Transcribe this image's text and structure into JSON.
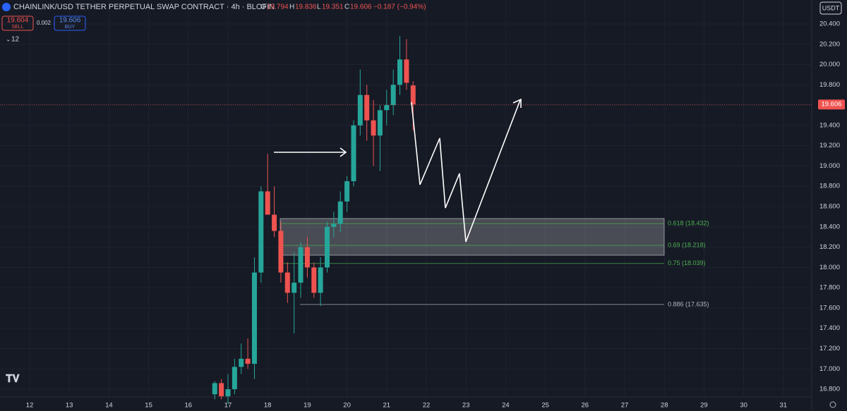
{
  "chart_data": {
    "type": "candlestick",
    "title": "CHAINLINK/USD TETHER PERPETUAL SWAP CONTRACT · 4h · BLOFIN",
    "ohlc_header": {
      "o_label": "O",
      "o": 19.794,
      "h_label": "H",
      "h": 19.836,
      "l_label": "L",
      "l": 19.351,
      "c_label": "C",
      "c": 19.606,
      "change": "−0.187 (−0.94%)"
    },
    "sell": {
      "price": 19.604,
      "label": "SELL"
    },
    "spread": 0.002,
    "buy": {
      "price": 19.606,
      "label": "BUY"
    },
    "indicator_count": "12",
    "currency": "USDT",
    "up_color": "#26a69a",
    "down_color": "#ef5350",
    "x": [
      16.667,
      16.833,
      17.0,
      17.167,
      17.333,
      17.5,
      17.667,
      17.833,
      18.0,
      18.167,
      18.333,
      18.5,
      18.667,
      18.833,
      19.0,
      19.167,
      19.333,
      19.5,
      19.667,
      19.833,
      20.0,
      20.167,
      20.333,
      20.5,
      20.667,
      20.833,
      21.0,
      21.167,
      21.333,
      21.5,
      21.667
    ],
    "open": [
      16.75,
      16.86,
      16.73,
      16.8,
      17.02,
      17.1,
      17.05,
      17.95,
      18.75,
      18.52,
      18.36,
      17.95,
      17.75,
      17.85,
      18.2,
      18.0,
      17.75,
      18.0,
      18.4,
      18.43,
      18.65,
      18.85,
      19.4,
      19.7,
      19.45,
      19.3,
      19.55,
      19.6,
      19.8,
      20.05,
      19.794
    ],
    "high": [
      16.88,
      16.9,
      16.95,
      17.1,
      17.25,
      17.3,
      18.1,
      18.8,
      19.12,
      18.8,
      18.45,
      18.05,
      18.15,
      18.25,
      18.3,
      18.05,
      18.1,
      18.45,
      18.55,
      18.75,
      18.9,
      19.45,
      19.95,
      19.8,
      19.65,
      19.6,
      19.75,
      19.95,
      20.28,
      20.25,
      19.836
    ],
    "low": [
      16.7,
      16.7,
      16.65,
      16.75,
      16.95,
      17.0,
      16.9,
      17.85,
      18.55,
      18.3,
      17.85,
      17.65,
      17.35,
      17.7,
      17.9,
      17.7,
      17.62,
      17.95,
      18.3,
      18.35,
      18.55,
      18.8,
      19.3,
      19.25,
      19.0,
      18.95,
      19.4,
      19.5,
      19.7,
      19.75,
      19.351
    ],
    "close": [
      16.86,
      16.73,
      16.8,
      17.02,
      17.1,
      17.05,
      17.95,
      18.75,
      18.52,
      18.36,
      17.95,
      17.75,
      17.85,
      18.2,
      18.0,
      17.75,
      18.0,
      18.4,
      18.43,
      18.65,
      18.85,
      19.4,
      19.7,
      19.45,
      19.3,
      19.55,
      19.6,
      19.8,
      20.05,
      19.82,
      19.606
    ],
    "last_price": 19.606,
    "xlim": [
      11.253,
      31.715
    ],
    "ylim": [
      16.724,
      20.636
    ],
    "xticks": [
      12,
      13,
      14,
      15,
      16,
      17,
      18,
      19,
      20,
      21,
      22,
      23,
      24,
      25,
      26,
      27,
      28,
      29,
      30,
      31
    ],
    "yticks": [
      {
        "value": 16.8,
        "label": "16.800"
      },
      {
        "value": 17.0,
        "label": "17.000"
      },
      {
        "value": 17.2,
        "label": "17.200"
      },
      {
        "value": 17.4,
        "label": "17.400"
      },
      {
        "value": 17.6,
        "label": "17.600"
      },
      {
        "value": 17.8,
        "label": "17.800"
      },
      {
        "value": 18.0,
        "label": "18.000"
      },
      {
        "value": 18.2,
        "label": "18.200"
      },
      {
        "value": 18.4,
        "label": "18.400"
      },
      {
        "value": 18.6,
        "label": "18.600"
      },
      {
        "value": 18.8,
        "label": "18.800"
      },
      {
        "value": 19.0,
        "label": "19.000"
      },
      {
        "value": 19.2,
        "label": "19.200"
      },
      {
        "value": 19.4,
        "label": "19.400"
      },
      {
        "value": 19.6,
        "label": "19.600"
      },
      {
        "value": 19.8,
        "label": "19.800"
      },
      {
        "value": 20.0,
        "label": "20.000"
      },
      {
        "value": 20.2,
        "label": "20.200"
      },
      {
        "value": 20.4,
        "label": "20.400"
      }
    ],
    "fib_levels": [
      {
        "label": "0.618 (18.432)",
        "value": 18.432,
        "color": "#4caf50"
      },
      {
        "label": "0.69 (18.218)",
        "value": 18.218,
        "color": "#4caf50"
      },
      {
        "label": "0.75 (18.039)",
        "value": 18.039,
        "color": "#4caf50"
      },
      {
        "label": "0.886 (17.635)",
        "value": 17.635,
        "color": "#b2b5be"
      }
    ]
  }
}
